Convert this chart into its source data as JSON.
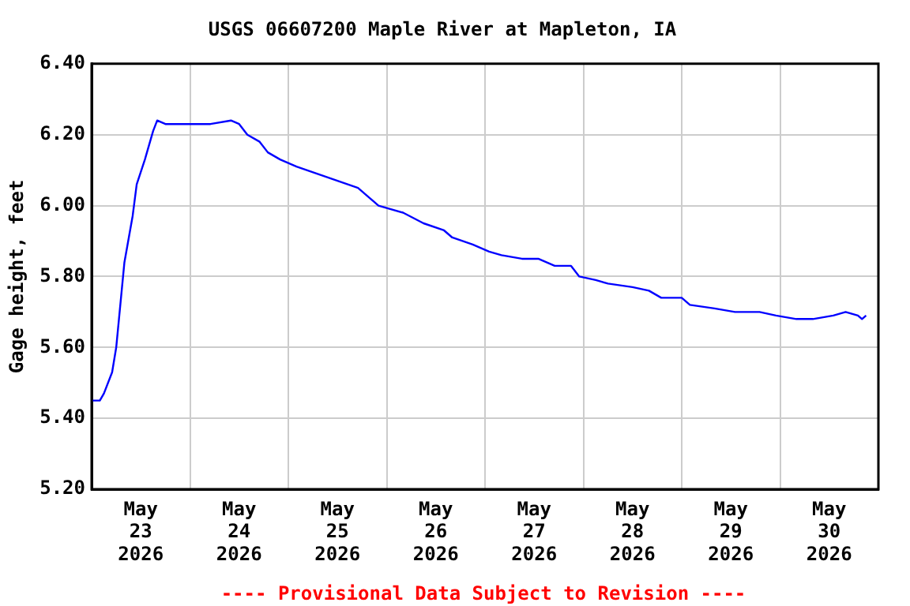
{
  "chart_data": {
    "type": "line",
    "title": "USGS 06607200 Maple River at Mapleton, IA",
    "ylabel": "Gage height, feet",
    "annotations": [
      "---- Provisional Data Subject to Revision ----"
    ],
    "x": [
      "2026-05-23T00:00",
      "2026-05-23T02:00",
      "2026-05-23T03:00",
      "2026-05-23T05:00",
      "2026-05-23T06:00",
      "2026-05-23T07:00",
      "2026-05-23T08:00",
      "2026-05-23T10:00",
      "2026-05-23T11:00",
      "2026-05-23T13:00",
      "2026-05-23T15:00",
      "2026-05-23T16:00",
      "2026-05-23T18:00",
      "2026-05-23T21:00",
      "2026-05-24T01:00",
      "2026-05-24T05:00",
      "2026-05-24T10:00",
      "2026-05-24T12:00",
      "2026-05-24T14:00",
      "2026-05-24T17:00",
      "2026-05-24T19:00",
      "2026-05-24T22:00",
      "2026-05-25T02:00",
      "2026-05-25T07:00",
      "2026-05-25T12:00",
      "2026-05-25T17:00",
      "2026-05-25T20:00",
      "2026-05-25T22:00",
      "2026-05-26T04:00",
      "2026-05-26T09:00",
      "2026-05-26T14:00",
      "2026-05-26T16:00",
      "2026-05-26T21:00",
      "2026-05-27T01:00",
      "2026-05-27T04:00",
      "2026-05-27T09:00",
      "2026-05-27T13:00",
      "2026-05-27T17:00",
      "2026-05-27T21:00",
      "2026-05-27T23:00",
      "2026-05-28T03:00",
      "2026-05-28T06:00",
      "2026-05-28T12:00",
      "2026-05-28T16:00",
      "2026-05-28T19:00",
      "2026-05-29T00:00",
      "2026-05-29T02:00",
      "2026-05-29T08:00",
      "2026-05-29T13:00",
      "2026-05-29T19:00",
      "2026-05-29T23:00",
      "2026-05-30T04:00",
      "2026-05-30T08:00",
      "2026-05-30T13:00",
      "2026-05-30T16:00",
      "2026-05-30T19:00",
      "2026-05-30T20:00",
      "2026-05-30T21:00"
    ],
    "series": [
      {
        "color": "#0000ff",
        "values": [
          5.45,
          5.45,
          5.47,
          5.53,
          5.6,
          5.72,
          5.84,
          5.97,
          6.06,
          6.13,
          6.21,
          6.24,
          6.23,
          6.23,
          6.23,
          6.23,
          6.24,
          6.23,
          6.2,
          6.18,
          6.15,
          6.13,
          6.11,
          6.09,
          6.07,
          6.05,
          6.02,
          6.0,
          5.98,
          5.95,
          5.93,
          5.91,
          5.89,
          5.87,
          5.86,
          5.85,
          5.85,
          5.83,
          5.83,
          5.8,
          5.79,
          5.78,
          5.77,
          5.76,
          5.74,
          5.74,
          5.72,
          5.71,
          5.7,
          5.7,
          5.69,
          5.68,
          5.68,
          5.69,
          5.7,
          5.69,
          5.68,
          5.69
        ]
      }
    ],
    "xlim": [
      "2026-05-23T00:00",
      "2026-05-31T00:00"
    ],
    "xticks": [
      {
        "value": "2026-05-23T12:00",
        "label": "May\n23\n2026"
      },
      {
        "value": "2026-05-24T00:00",
        "label": null
      },
      {
        "value": "2026-05-24T12:00",
        "label": "May\n24\n2026"
      },
      {
        "value": "2026-05-25T00:00",
        "label": null
      },
      {
        "value": "2026-05-25T12:00",
        "label": "May\n25\n2026"
      },
      {
        "value": "2026-05-26T00:00",
        "label": null
      },
      {
        "value": "2026-05-26T12:00",
        "label": "May\n26\n2026"
      },
      {
        "value": "2026-05-27T00:00",
        "label": null
      },
      {
        "value": "2026-05-27T12:00",
        "label": "May\n27\n2026"
      },
      {
        "value": "2026-05-28T00:00",
        "label": null
      },
      {
        "value": "2026-05-28T12:00",
        "label": "May\n28\n2026"
      },
      {
        "value": "2026-05-29T00:00",
        "label": null
      },
      {
        "value": "2026-05-29T12:00",
        "label": "May\n29\n2026"
      },
      {
        "value": "2026-05-30T00:00",
        "label": null
      },
      {
        "value": "2026-05-30T12:00",
        "label": "May\n30\n2026"
      }
    ],
    "ylim": [
      5.2,
      6.4
    ],
    "yticks": [
      {
        "value": 5.2,
        "label": "5.20"
      },
      {
        "value": 5.4,
        "label": "5.40"
      },
      {
        "value": 5.6,
        "label": "5.60"
      },
      {
        "value": 5.8,
        "label": "5.80"
      },
      {
        "value": 6.0,
        "label": "6.00"
      },
      {
        "value": 6.2,
        "label": "6.20"
      },
      {
        "value": 6.4,
        "label": "6.40"
      }
    ],
    "grid": true,
    "legend": false,
    "marker": "none",
    "line_style": "solid"
  }
}
